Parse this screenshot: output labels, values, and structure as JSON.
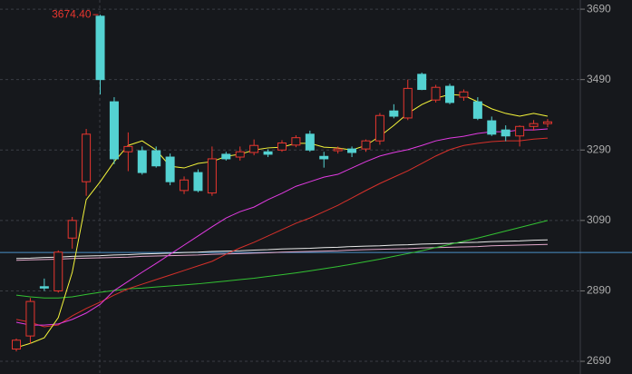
{
  "chart_data": {
    "type": "candlestick",
    "up_color": "#e8362f",
    "down_color": "#54d2d2",
    "ylim": [
      2654,
      3716
    ],
    "yticks": [
      2690,
      2890,
      3090,
      3290,
      3490,
      3690
    ],
    "grid": true,
    "annotation": {
      "value": 3674.4,
      "label": "3674.40",
      "color": "#e8362f"
    },
    "reference_line": {
      "value": 2999,
      "color": "#4a90c8"
    },
    "open": [
      2725,
      2762,
      2902,
      2890,
      3040,
      3200,
      3670,
      3427,
      3285,
      3288,
      3288,
      3270,
      3175,
      3226,
      3168,
      3278,
      3270,
      3283,
      3285,
      3290,
      3304,
      3335,
      3272,
      3288,
      3293,
      3293,
      3316,
      3401,
      3381,
      3505,
      3432,
      3471,
      3440,
      3427,
      3373,
      3347,
      3330,
      3357,
      3365
    ],
    "high": [
      2755,
      2870,
      2925,
      3005,
      3100,
      3350,
      3674.4,
      3440,
      3340,
      3300,
      3300,
      3280,
      3215,
      3235,
      3300,
      3285,
      3300,
      3320,
      3292,
      3318,
      3332,
      3345,
      3285,
      3300,
      3300,
      3320,
      3395,
      3420,
      3490,
      3510,
      3475,
      3478,
      3462,
      3440,
      3385,
      3360,
      3360,
      3375,
      3378
    ],
    "low": [
      2718,
      2740,
      2890,
      2885,
      3010,
      3160,
      3448,
      3250,
      3230,
      3220,
      3240,
      3190,
      3165,
      3170,
      3160,
      3260,
      3260,
      3275,
      3270,
      3285,
      3298,
      3285,
      3240,
      3280,
      3270,
      3285,
      3305,
      3380,
      3375,
      3460,
      3425,
      3420,
      3430,
      3375,
      3330,
      3315,
      3300,
      3345,
      3355
    ],
    "close": [
      2750,
      2860,
      2898,
      3000,
      3090,
      3335,
      3490,
      3265,
      3300,
      3226,
      3245,
      3200,
      3205,
      3175,
      3265,
      3265,
      3285,
      3303,
      3278,
      3310,
      3325,
      3290,
      3265,
      3293,
      3283,
      3316,
      3388,
      3386,
      3465,
      3462,
      3468,
      3425,
      3455,
      3380,
      3335,
      3330,
      3357,
      3365,
      3370
    ],
    "series": [
      {
        "color": "#e0a6c8",
        "values": [
          2977,
          2978,
          2979,
          2980,
          2982,
          2983,
          2984,
          2985,
          2986,
          2988,
          2989,
          2990,
          2991,
          2992,
          2994,
          2995,
          2996,
          2997,
          2998,
          3000,
          3001,
          3002,
          3003,
          3004,
          3006,
          3007,
          3008,
          3009,
          3010,
          3012,
          3013,
          3014,
          3015,
          3016,
          3018,
          3019,
          3020,
          3021,
          3022
        ]
      },
      {
        "color": "#e8e8e8",
        "values": [
          2982,
          2983,
          2985,
          2986,
          2988,
          2989,
          2990,
          2992,
          2993,
          2995,
          2996,
          2997,
          2999,
          3000,
          3002,
          3003,
          3004,
          3006,
          3007,
          3009,
          3010,
          3011,
          3013,
          3014,
          3016,
          3017,
          3018,
          3020,
          3021,
          3023,
          3024,
          3025,
          3027,
          3028,
          3030,
          3031,
          3032,
          3034,
          3035
        ]
      },
      {
        "color": "#33c233",
        "values": [
          2878,
          2873,
          2870,
          2870,
          2873,
          2880,
          2886,
          2891,
          2896,
          2898,
          2901,
          2904,
          2907,
          2910,
          2914,
          2918,
          2922,
          2926,
          2931,
          2936,
          2941,
          2947,
          2953,
          2959,
          2966,
          2973,
          2980,
          2988,
          2996,
          3004,
          3013,
          3022,
          3031,
          3040,
          3050,
          3060,
          3070,
          3080,
          3090
        ]
      },
      {
        "color": "#d6302a",
        "values": [
          2809,
          2801,
          2788,
          2793,
          2819,
          2840,
          2858,
          2878,
          2896,
          2909,
          2922,
          2935,
          2948,
          2961,
          2974,
          2994,
          3012,
          3028,
          3046,
          3064,
          3082,
          3097,
          3115,
          3133,
          3154,
          3175,
          3195,
          3213,
          3231,
          3252,
          3273,
          3291,
          3303,
          3309,
          3314,
          3316,
          3316,
          3321,
          3324
        ]
      },
      {
        "color": "#e23be2",
        "values": [
          2801,
          2793,
          2793,
          2796,
          2809,
          2827,
          2852,
          2891,
          2917,
          2943,
          2968,
          2994,
          3020,
          3046,
          3072,
          3097,
          3115,
          3128,
          3149,
          3167,
          3187,
          3200,
          3213,
          3221,
          3239,
          3257,
          3273,
          3283,
          3291,
          3303,
          3316,
          3324,
          3329,
          3337,
          3342,
          3342,
          3347,
          3347,
          3350
        ]
      },
      {
        "color": "#f5f53a",
        "values": [
          2729,
          2741,
          2757,
          2814,
          2943,
          3149,
          3200,
          3257,
          3303,
          3316,
          3290,
          3244,
          3239,
          3252,
          3257,
          3272,
          3278,
          3290,
          3296,
          3298,
          3309,
          3309,
          3298,
          3296,
          3290,
          3303,
          3329,
          3360,
          3394,
          3419,
          3437,
          3448,
          3445,
          3427,
          3407,
          3394,
          3386,
          3394,
          3386
        ]
      }
    ]
  }
}
